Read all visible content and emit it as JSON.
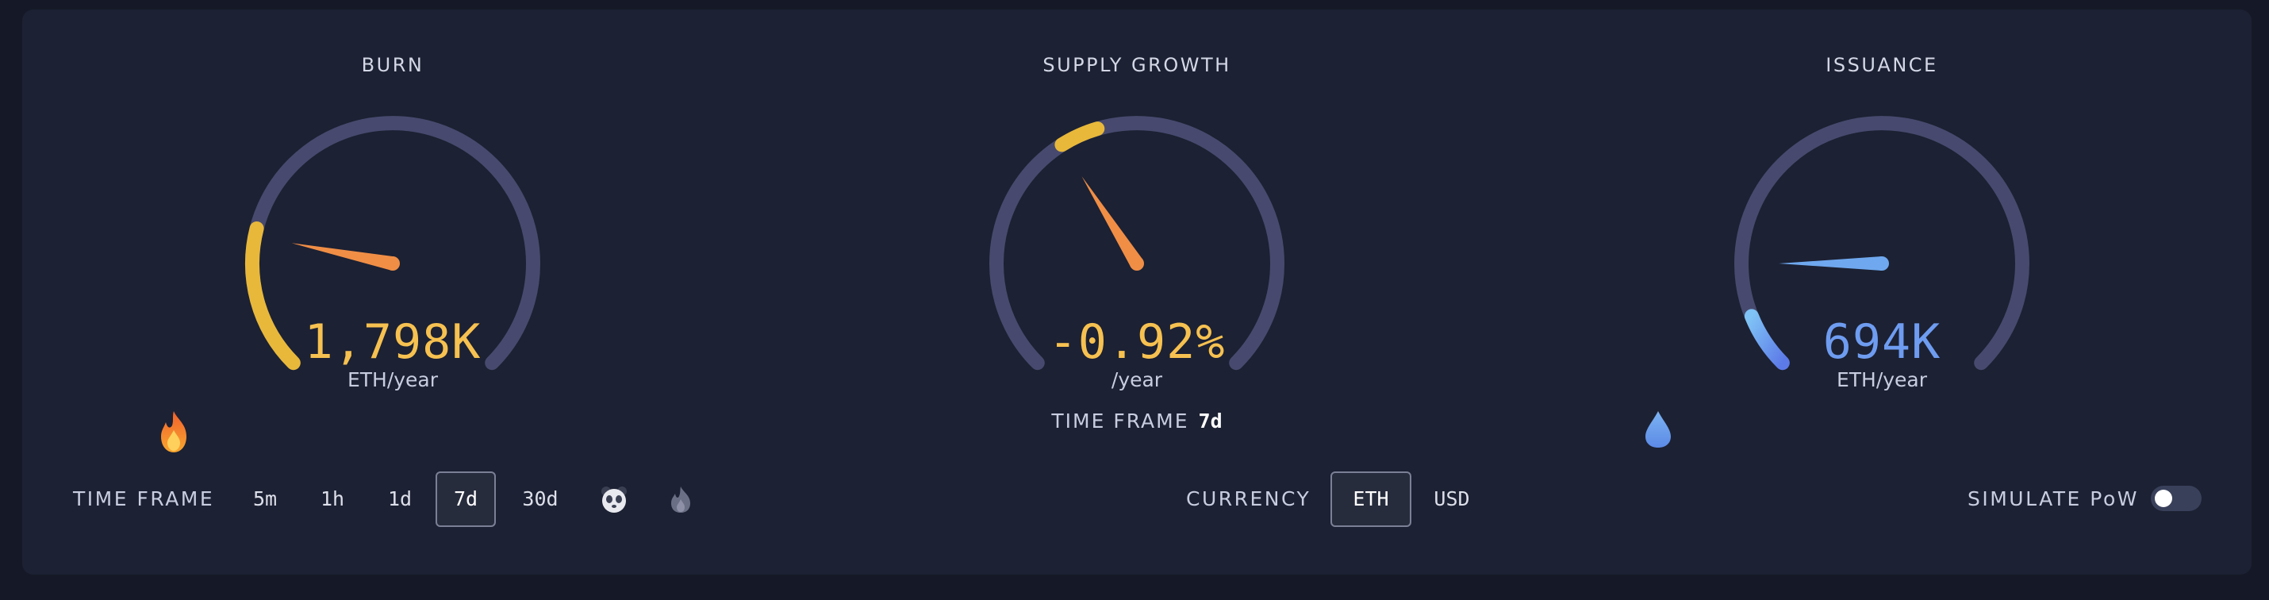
{
  "colors": {
    "panel": "#1c2133",
    "track": "#474a6e",
    "burn": "#f6c150",
    "burn_arc": "#e8b83a",
    "needle": "#f08e46",
    "issuance": "#6e9cf0",
    "issuance_arc": "#6fa8ee"
  },
  "burn": {
    "title": "BURN",
    "value": "1,798K",
    "unit": "ETH/year",
    "icon": "fire-icon",
    "fill_fraction": 0.22
  },
  "supply": {
    "title": "SUPPLY GROWTH",
    "value": "-0.92%",
    "unit": "/year",
    "time_frame_label": "TIME FRAME",
    "time_frame_value": "7d",
    "fill_fraction_center": 0.41
  },
  "issuance": {
    "title": "ISSUANCE",
    "value": "694K",
    "unit": "ETH/year",
    "icon": "droplet-icon",
    "fill_fraction": 0.085
  },
  "controls": {
    "time_frame_label": "TIME FRAME",
    "time_frames": [
      "5m",
      "1h",
      "1d",
      "7d",
      "30d"
    ],
    "active_time_frame": "7d",
    "extra_icons": [
      "panda-icon",
      "fire-icon"
    ],
    "currency_label": "CURRENCY",
    "currencies": [
      "ETH",
      "USD"
    ],
    "active_currency": "ETH",
    "simulate_label": "SIMULATE PoW",
    "simulate_on": false
  }
}
